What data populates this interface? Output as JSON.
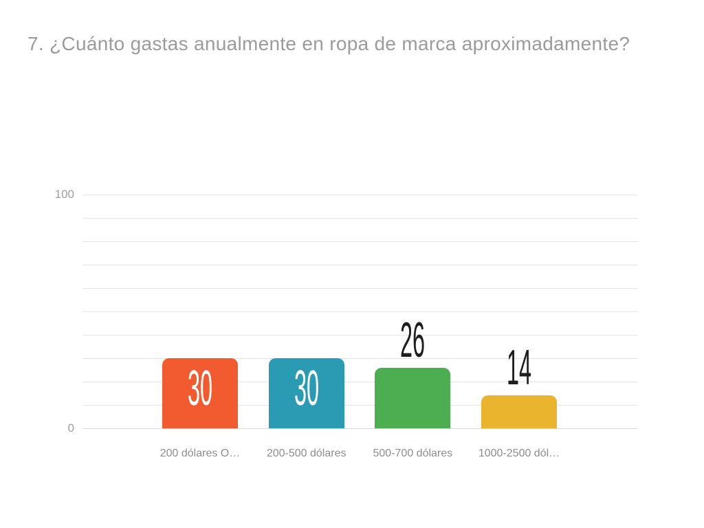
{
  "title": "7. ¿Cuánto gastas anualmente en ropa de marca aproximadamente?",
  "chart_data": {
    "type": "bar",
    "title": "7. ¿Cuánto gastas anualmente en ropa de marca aproximadamente?",
    "categories": [
      "200 dólares O…",
      "200-500 dólares",
      "500-700 dólares",
      "1000-2500 dól…"
    ],
    "values": [
      30,
      30,
      26,
      14
    ],
    "value_labels": [
      "30",
      "30",
      "26",
      "14"
    ],
    "bar_colors": [
      "#f15b2f",
      "#2b9ab3",
      "#4cae50",
      "#ebb42e"
    ],
    "value_label_positions": [
      "inside",
      "inside",
      "above",
      "above"
    ],
    "value_label_colors": [
      "#ffffff",
      "#1e1e1e"
    ],
    "xlabel": "",
    "ylabel": "",
    "ylim": [
      0,
      100
    ],
    "ytick_labels_shown": [
      "0",
      "100"
    ],
    "gridline_step": 10,
    "grid": true,
    "legend_position": "none"
  },
  "style_colors": {
    "background": "#ffffff",
    "title_text": "#9b9b9b",
    "axis_tick_text": "#9e9e9e",
    "category_text": "#8d8d8d",
    "gridline": "#e4e4e4",
    "zero_line": "#d8d8d8"
  }
}
